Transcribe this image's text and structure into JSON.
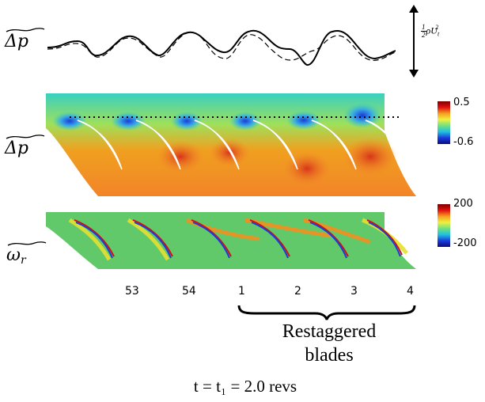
{
  "rows": {
    "pressure_trace_label": "Δp",
    "pressure_contour_label": "Δp",
    "vorticity_contour_label": "ω",
    "vorticity_subscript": "r"
  },
  "scale_bar": {
    "label_frac_num": "1",
    "label_frac_den": "2",
    "label_rest": "ρU",
    "label_sub": "t",
    "label_sup": "2"
  },
  "colorbar_pressure": {
    "max": "0.5",
    "min": "-0.6"
  },
  "colorbar_vorticity": {
    "max": "200",
    "min": "-200"
  },
  "blade_numbers": [
    "53",
    "54",
    "1",
    "2",
    "3",
    "4"
  ],
  "restaggered": {
    "line1": "Restaggered",
    "line2": "blades"
  },
  "time_caption": "t = t₁ = 2.0 revs",
  "colors": {
    "field_background": "#5fc97a",
    "high": "#e24a1a",
    "low": "#1a3cd8",
    "blade": "#ffffff"
  }
}
